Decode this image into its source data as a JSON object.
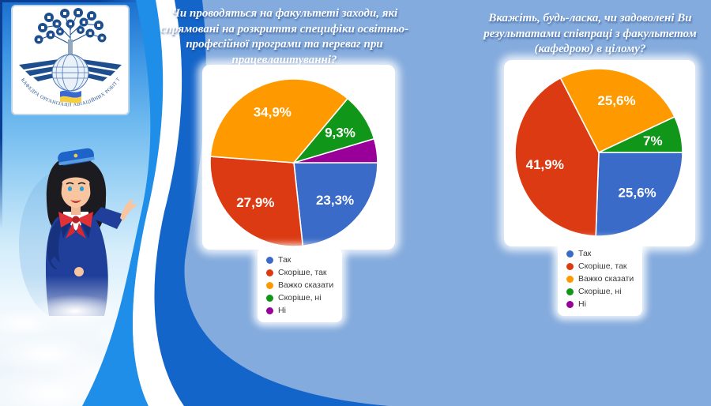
{
  "slide": {
    "background_color": "#84abdd"
  },
  "logo": {
    "caption": "КАФЕДРА ОРГАНІЗАЦІЇ АВІАЦІЙНИХ РОБІТ ТА ПОСЛУГ"
  },
  "chart_data": [
    {
      "type": "pie",
      "title": "Чи проводяться на факультеті заходи, які спрямовані на розкриття специфіки освітньо-професійної програми та переваг при працевлаштуванні?",
      "labels": [
        "Так",
        "Скоріше, так",
        "Важко сказати",
        "Скоріше, ні",
        "Ні"
      ],
      "values": [
        23.3,
        27.9,
        34.9,
        9.3,
        4.6
      ],
      "value_labels": [
        "23,3%",
        "27,9%",
        "34,9%",
        "9,3%",
        ""
      ],
      "colors": [
        "#3a6bc8",
        "#dc3a12",
        "#ff9900",
        "#109618",
        "#990099"
      ],
      "start_angle_deg": 0,
      "direction": "clockwise",
      "legend_position": "below"
    },
    {
      "type": "pie",
      "title": "Вкажіть, будь-ласка, чи задоволені Ви результатами співпраці з факультетом (кафедрою) в цілому?",
      "labels": [
        "Так",
        "Скоріше, так",
        "Важко сказати",
        "Скоріше, ні",
        "Ні"
      ],
      "values": [
        25.6,
        41.9,
        25.6,
        7,
        0
      ],
      "value_labels": [
        "25,6%",
        "41,9%",
        "25,6%",
        "7%",
        ""
      ],
      "colors": [
        "#3a6bc8",
        "#dc3a12",
        "#ff9900",
        "#109618",
        "#990099"
      ],
      "start_angle_deg": 0,
      "direction": "clockwise",
      "legend_position": "below"
    }
  ]
}
